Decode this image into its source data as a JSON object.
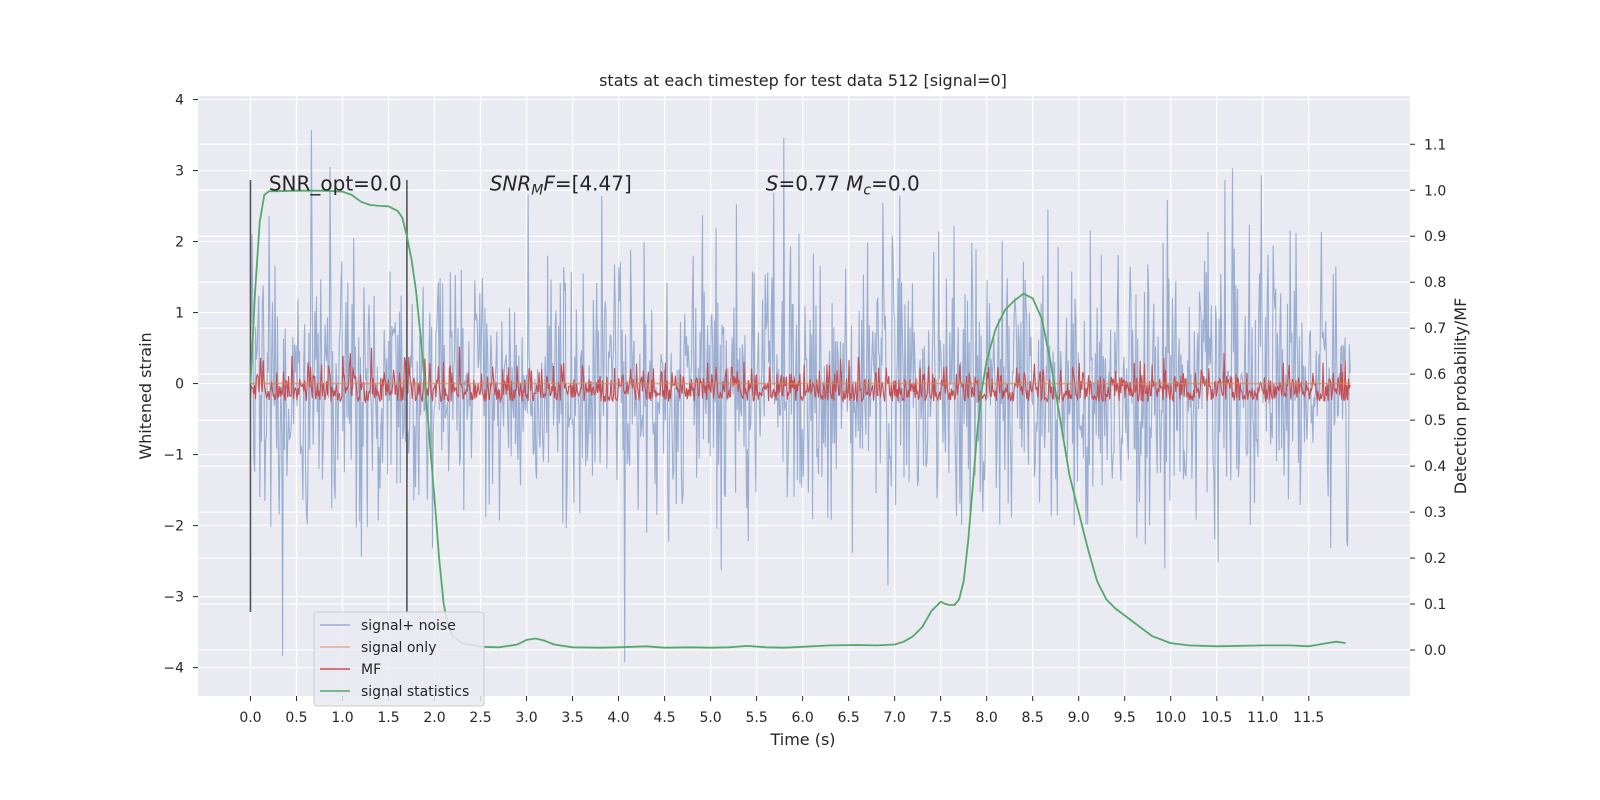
{
  "chart_data": {
    "type": "line",
    "title": "stats at each timestep for test data 512 [signal=0]",
    "xlabel": "Time (s)",
    "ylabel": "Whitened strain",
    "y2label": "Detection probability/MF",
    "xlim": [
      -0.57,
      12.6
    ],
    "ylim": [
      -4.4,
      4.05
    ],
    "y2lim": [
      -0.1,
      1.205
    ],
    "xticks": [
      "0.0",
      "0.5",
      "1.0",
      "1.5",
      "2.0",
      "2.5",
      "3.0",
      "3.5",
      "4.0",
      "4.5",
      "5.0",
      "5.5",
      "6.0",
      "6.5",
      "7.0",
      "7.5",
      "8.0",
      "8.5",
      "9.0",
      "9.5",
      "10.0",
      "10.5",
      "11.0",
      "11.5"
    ],
    "yticks": [
      "4",
      "3",
      "2",
      "1",
      "0",
      "−1",
      "−2",
      "−3",
      "−4"
    ],
    "y2ticks": [
      "1.1",
      "1.0",
      "0.9",
      "0.8",
      "0.7",
      "0.6",
      "0.5",
      "0.4",
      "0.3",
      "0.2",
      "0.1",
      "0.0"
    ],
    "grid": true,
    "legend_position": "lower-left",
    "colors": {
      "noise": "#4c72b0",
      "signal": "#dd8452",
      "mf": "#c44e52",
      "stats": "#55a868",
      "vline": "#555555",
      "background": "#eaeaf2"
    },
    "series": [
      {
        "name": "signal+ noise",
        "axis": "left",
        "description_range": [
          -4.1,
          3.65
        ],
        "typical_band": [
          -1.6,
          1.6
        ]
      },
      {
        "name": "signal only",
        "axis": "left",
        "x": [
          0.0,
          11.95
        ],
        "y": [
          0.0,
          0.0
        ]
      },
      {
        "name": "MF",
        "axis": "right",
        "typical_band": [
          0.54,
          0.68
        ],
        "peak": 0.72
      },
      {
        "name": "signal statistics",
        "axis": "right",
        "x": [
          0.0,
          0.05,
          0.1,
          0.15,
          0.2,
          0.3,
          0.5,
          0.8,
          1.0,
          1.1,
          1.2,
          1.3,
          1.35,
          1.4,
          1.5,
          1.6,
          1.65,
          1.7,
          1.75,
          1.8,
          1.85,
          1.9,
          1.95,
          2.0,
          2.05,
          2.1,
          2.15,
          2.2,
          2.3,
          2.5,
          2.7,
          2.9,
          3.0,
          3.1,
          3.2,
          3.3,
          3.5,
          3.8,
          4.0,
          4.3,
          4.5,
          4.8,
          5.0,
          5.2,
          5.4,
          5.6,
          5.8,
          6.0,
          6.3,
          6.6,
          6.8,
          7.0,
          7.1,
          7.2,
          7.3,
          7.4,
          7.5,
          7.55,
          7.6,
          7.65,
          7.7,
          7.75,
          7.8,
          7.85,
          7.9,
          7.95,
          8.0,
          8.1,
          8.2,
          8.3,
          8.4,
          8.5,
          8.6,
          8.7,
          8.8,
          8.9,
          9.0,
          9.1,
          9.2,
          9.3,
          9.4,
          9.6,
          9.8,
          10.0,
          10.2,
          10.5,
          11.0,
          11.3,
          11.5,
          11.7,
          11.8,
          11.9
        ],
        "y": [
          0.58,
          0.78,
          0.93,
          0.99,
          0.998,
          0.998,
          0.999,
          0.999,
          0.997,
          0.99,
          0.975,
          0.968,
          0.967,
          0.966,
          0.965,
          0.955,
          0.94,
          0.9,
          0.85,
          0.78,
          0.68,
          0.57,
          0.45,
          0.33,
          0.2,
          0.1,
          0.05,
          0.03,
          0.015,
          0.007,
          0.006,
          0.012,
          0.022,
          0.025,
          0.02,
          0.012,
          0.006,
          0.005,
          0.006,
          0.008,
          0.005,
          0.006,
          0.005,
          0.006,
          0.009,
          0.006,
          0.005,
          0.007,
          0.01,
          0.011,
          0.01,
          0.012,
          0.018,
          0.03,
          0.05,
          0.085,
          0.105,
          0.1,
          0.098,
          0.098,
          0.11,
          0.15,
          0.24,
          0.36,
          0.48,
          0.57,
          0.63,
          0.7,
          0.74,
          0.76,
          0.775,
          0.765,
          0.72,
          0.62,
          0.5,
          0.38,
          0.3,
          0.22,
          0.15,
          0.11,
          0.09,
          0.06,
          0.03,
          0.015,
          0.01,
          0.008,
          0.01,
          0.01,
          0.008,
          0.015,
          0.018,
          0.015
        ]
      }
    ],
    "vlines": [
      0.0,
      1.7
    ],
    "annotations": [
      {
        "x": 0.2,
        "y": 1.0,
        "parts": [
          {
            "t": "SNR_opt=0.0"
          }
        ]
      },
      {
        "x": 2.6,
        "y": 1.0,
        "parts": [
          {
            "t": "SNR",
            "i": true
          },
          {
            "t": "M",
            "i": true,
            "sub": true
          },
          {
            "t": "F",
            "i": true
          },
          {
            "t": "=[4.47]"
          }
        ]
      },
      {
        "x": 5.6,
        "y": 1.0,
        "parts": [
          {
            "t": "S",
            "i": true
          },
          {
            "t": "=0.77   "
          },
          {
            "t": "M",
            "i": true
          },
          {
            "t": "c",
            "i": true,
            "sub": true
          },
          {
            "t": "=0.0"
          }
        ]
      }
    ]
  }
}
